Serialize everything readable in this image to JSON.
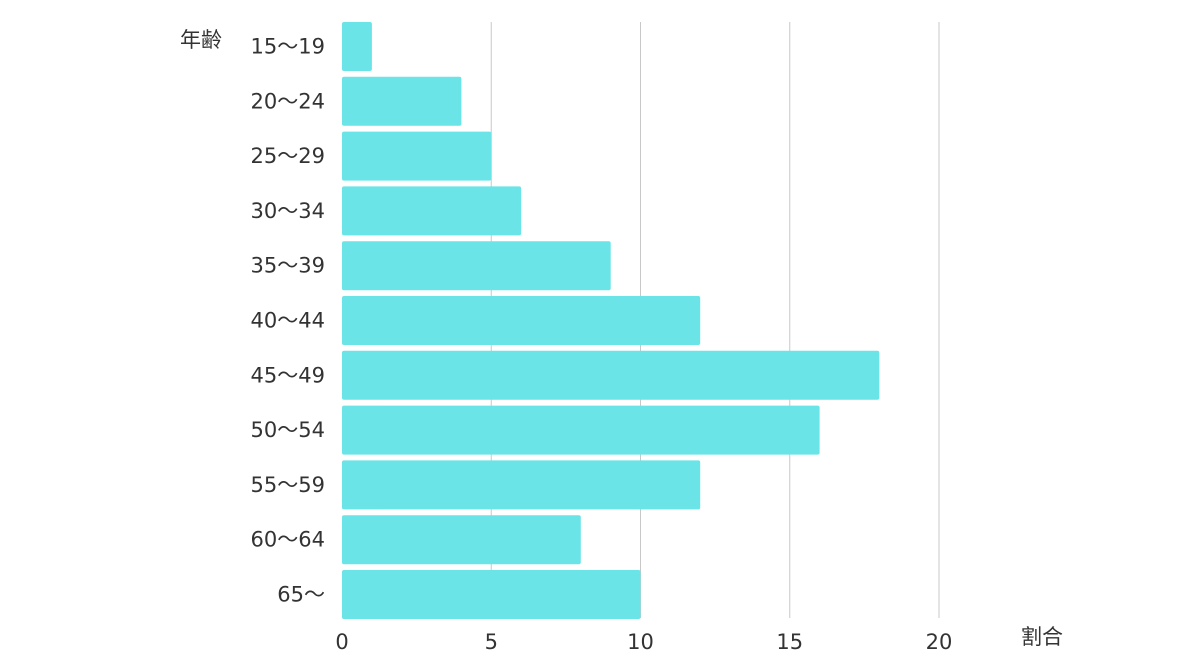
{
  "chart_data": {
    "type": "bar",
    "orientation": "horizontal",
    "categories": [
      "15〜19",
      "20〜24",
      "25〜29",
      "30〜34",
      "35〜39",
      "40〜44",
      "45〜49",
      "50〜54",
      "55〜59",
      "60〜64",
      "65〜"
    ],
    "values": [
      1,
      4,
      5,
      6,
      9,
      12,
      18,
      16,
      12,
      8,
      10
    ],
    "title": "",
    "xlabel": "割合",
    "ylabel": "年齢",
    "xlim": [
      0,
      20
    ],
    "xticks": [
      0,
      5,
      10,
      15,
      20
    ],
    "grid": "vertical",
    "bar_color": "#6be4e7",
    "grid_color": "#c8c8c8"
  }
}
